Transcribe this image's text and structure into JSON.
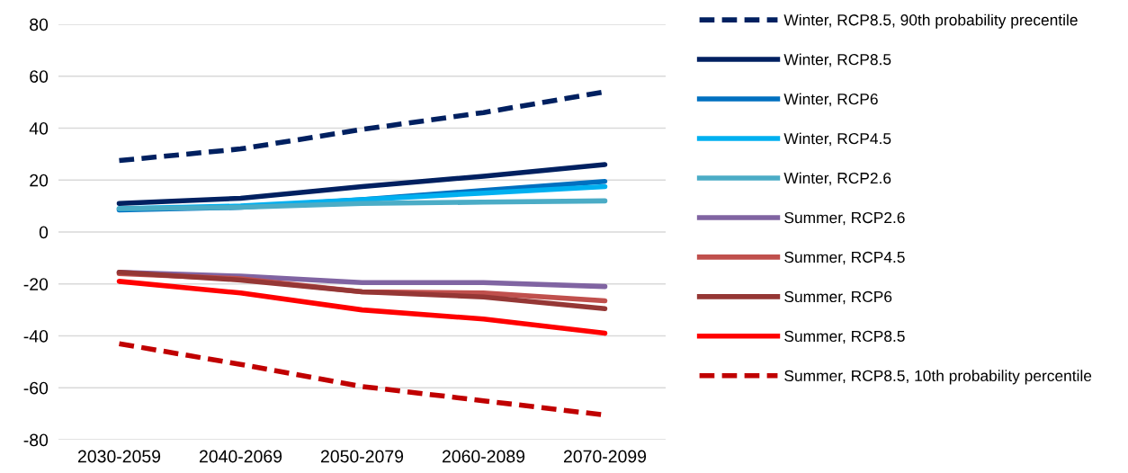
{
  "chart_data": {
    "type": "line",
    "categories": [
      "2030-2059",
      "2040-2069",
      "2050-2079",
      "2060-2089",
      "2070-2099"
    ],
    "ylim": [
      -80,
      80
    ],
    "yticks": [
      -80,
      -60,
      -40,
      -20,
      0,
      20,
      40,
      60,
      80
    ],
    "grid": "y",
    "legend": "right",
    "marker": "none",
    "series": [
      {
        "name": "Winter, RCP8.5, 90th probability precentile",
        "color": "#002060",
        "line_style": "dashed",
        "values": [
          27.5,
          32,
          39.5,
          46,
          54
        ]
      },
      {
        "name": "Winter, RCP8.5",
        "color": "#002060",
        "values": [
          11,
          13,
          17.5,
          21.5,
          26
        ]
      },
      {
        "name": "Winter, RCP6",
        "color": "#0070c0",
        "values": [
          8.5,
          9.5,
          12.5,
          16,
          19.5
        ]
      },
      {
        "name": "Winter, RCP4.5",
        "color": "#00b0f0",
        "values": [
          9,
          10,
          12.5,
          15,
          17.5
        ]
      },
      {
        "name": "Winter, RCP2.6",
        "color": "#4bacc6",
        "values": [
          9,
          9.5,
          11,
          11.5,
          12
        ]
      },
      {
        "name": "Summer, RCP2.6",
        "color": "#8064a2",
        "values": [
          -15.5,
          -17,
          -19.5,
          -19.5,
          -21
        ]
      },
      {
        "name": "Summer, RCP4.5",
        "color": "#c0504d",
        "values": [
          -16,
          -18,
          -23,
          -23.5,
          -26.5
        ]
      },
      {
        "name": "Summer, RCP6",
        "color": "#953735",
        "values": [
          -15.5,
          -18.5,
          -23,
          -25,
          -29.5
        ]
      },
      {
        "name": "Summer, RCP8.5",
        "color": "#ff0000",
        "values": [
          -19,
          -23.5,
          -30,
          -33.5,
          -39
        ]
      },
      {
        "name": "Summer, RCP8.5, 10th probability percentile",
        "color": "#c00000",
        "line_style": "dashed",
        "values": [
          -43,
          -51,
          -59.5,
          -65,
          -70.5
        ]
      }
    ]
  }
}
